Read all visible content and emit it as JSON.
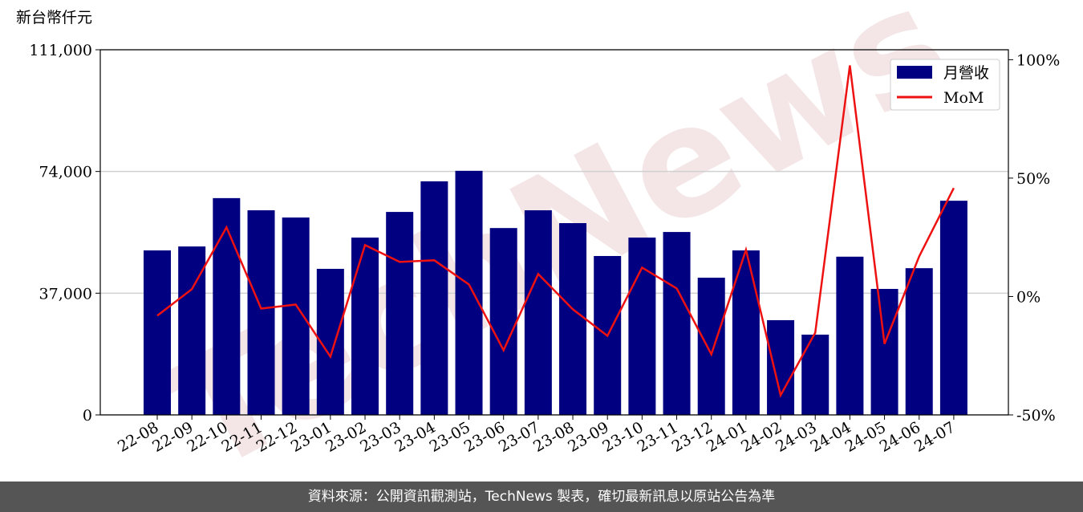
{
  "chart_data": {
    "type": "bar_line",
    "y_label": "新台幣仟元",
    "watermark": "TechNews",
    "categories": [
      "22-08",
      "22-09",
      "22-10",
      "22-11",
      "22-12",
      "23-01",
      "23-02",
      "23-03",
      "23-04",
      "23-05",
      "23-06",
      "23-07",
      "23-08",
      "23-09",
      "23-10",
      "23-11",
      "23-12",
      "24-01",
      "24-02",
      "24-03",
      "24-04",
      "24-05",
      "24-06",
      "24-07"
    ],
    "series": [
      {
        "name": "月營收",
        "type": "bar",
        "color": "#000080",
        "values": [
          50000,
          51200,
          65900,
          62200,
          60000,
          44400,
          53900,
          61700,
          71000,
          74200,
          56800,
          62200,
          58300,
          48300,
          53900,
          55600,
          41700,
          50000,
          28800,
          24400,
          48100,
          38300,
          44600,
          65100
        ]
      },
      {
        "name": "MoM",
        "type": "line",
        "axis": "y2",
        "color": "#ee1111",
        "values": [
          -8.1,
          3.1,
          29.2,
          -5.1,
          -3.4,
          -25.4,
          21.7,
          14.6,
          15.3,
          5.1,
          -22.7,
          9.5,
          -5.4,
          -16.6,
          12.2,
          3.4,
          -24.4,
          19.7,
          -41.7,
          -15.3,
          97.6,
          -20.0,
          16.9,
          45.8
        ]
      }
    ],
    "ylim": [
      0,
      111000
    ],
    "yticks": [
      0,
      {
        "value": 37000,
        "label": "37,000"
      },
      {
        "value": 74000,
        "label": "74,000"
      },
      {
        "value": 111000,
        "label": "111,000"
      }
    ],
    "y2lim": [
      -50,
      104.2
    ],
    "y2ticks": [
      {
        "value": -50,
        "label": "-50%"
      },
      {
        "value": 0,
        "label": "0%"
      },
      {
        "value": 50,
        "label": "50%"
      },
      {
        "value": 100,
        "label": "100%"
      }
    ],
    "grid": true,
    "legend": "upper right"
  },
  "footer": "資料來源：公開資訊觀測站，TechNews 製表，確切最新訊息以原站公告為準"
}
